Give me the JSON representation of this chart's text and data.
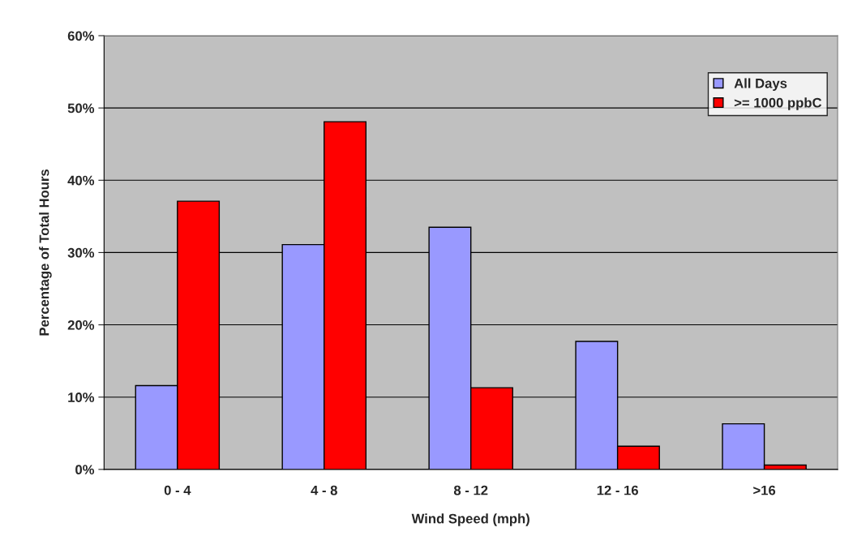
{
  "chart_data": {
    "type": "bar",
    "xlabel": "Wind Speed (mph)",
    "ylabel": "Percentage of Total Hours",
    "categories": [
      "0 - 4",
      "4 - 8",
      "8 - 12",
      "12 - 16",
      ">16"
    ],
    "series": [
      {
        "name": "All Days",
        "color": "#9999ff",
        "values": [
          11.6,
          31.1,
          33.5,
          17.7,
          6.3
        ]
      },
      {
        "name": ">= 1000 ppbC",
        "color": "#ff0000",
        "values": [
          37.1,
          48.1,
          11.3,
          3.2,
          0.6
        ]
      }
    ],
    "ylim": [
      0,
      60
    ],
    "yticks": [
      {
        "value": 0,
        "label": "0%"
      },
      {
        "value": 10,
        "label": "10%"
      },
      {
        "value": 20,
        "label": "20%"
      },
      {
        "value": 30,
        "label": "30%"
      },
      {
        "value": 40,
        "label": "40%"
      },
      {
        "value": 50,
        "label": "50%"
      },
      {
        "value": 60,
        "label": "60%"
      }
    ],
    "grid": "y",
    "legend": "top right"
  }
}
